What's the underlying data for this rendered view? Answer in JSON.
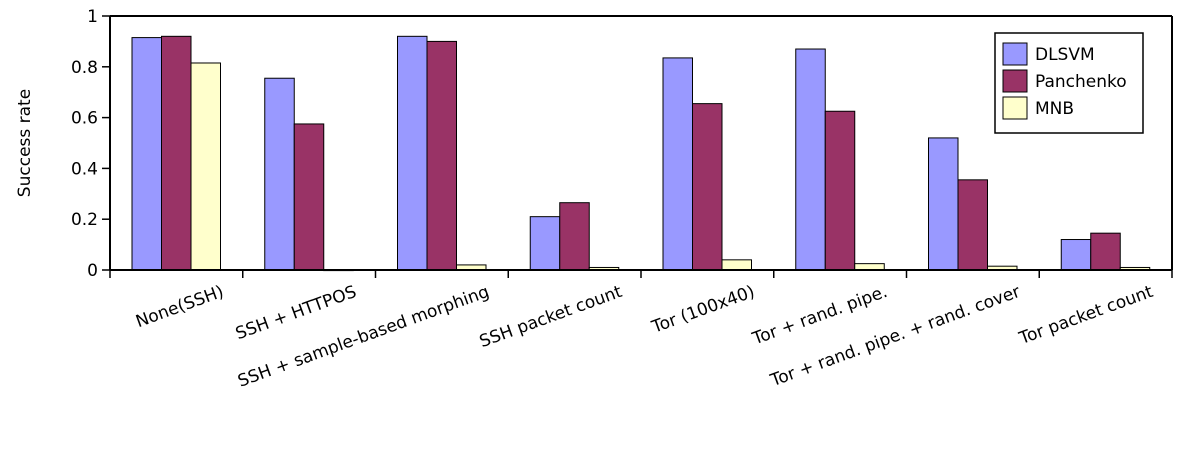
{
  "chart_data": {
    "type": "bar",
    "title": "",
    "xlabel": "",
    "ylabel": "Success rate",
    "ylim": [
      0,
      1
    ],
    "yticks": [
      "0",
      "0.2",
      "0.4",
      "0.6",
      "0.8",
      "1"
    ],
    "grid": false,
    "legend_position": "top-right",
    "categories": [
      "None(SSH)",
      "SSH + HTTPOS",
      "SSH + sample-based morphing",
      "SSH packet count",
      "Tor (100x40)",
      "Tor + rand. pipe.",
      "Tor + rand. pipe. + rand. cover",
      "Tor packet count"
    ],
    "series": [
      {
        "name": "DLSVM",
        "color": "#9999ff",
        "values": [
          0.915,
          0.755,
          0.92,
          0.21,
          0.835,
          0.87,
          0.52,
          0.12
        ]
      },
      {
        "name": "Panchenko",
        "color": "#993366",
        "values": [
          0.92,
          0.575,
          0.9,
          0.265,
          0.655,
          0.625,
          0.355,
          0.145
        ]
      },
      {
        "name": "MNB",
        "color": "#ffffcc",
        "values": [
          0.815,
          0.0,
          0.02,
          0.01,
          0.04,
          0.025,
          0.015,
          0.01
        ]
      }
    ]
  }
}
